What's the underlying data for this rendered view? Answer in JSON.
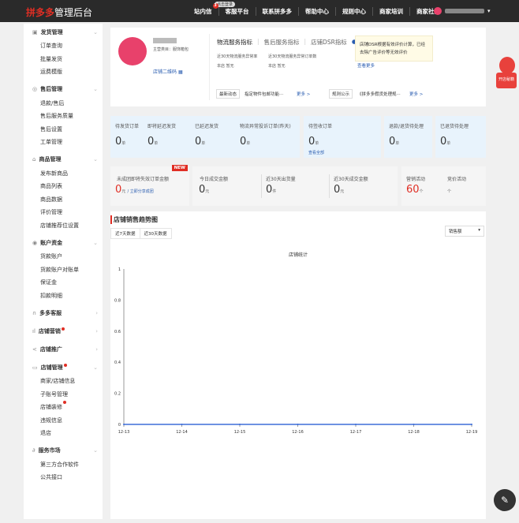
{
  "header": {
    "logo_brand": "拼多多",
    "logo_text": "管理后台",
    "nav": [
      {
        "label": "站内信",
        "badge": "3"
      },
      {
        "label": "客服平台",
        "bubble": "点击登录"
      },
      {
        "label": "联系拼多多"
      },
      {
        "label": "帮助中心"
      },
      {
        "label": "规则中心"
      },
      {
        "label": "商家培训"
      },
      {
        "label": "商家社区"
      }
    ]
  },
  "sidebar": [
    {
      "label": "发货管理",
      "icon": "box-icon",
      "open": true,
      "items": [
        {
          "label": "订单查询"
        },
        {
          "label": "批量发货"
        },
        {
          "label": "运费模版"
        }
      ]
    },
    {
      "label": "售后管理",
      "icon": "service-icon",
      "open": true,
      "items": [
        {
          "label": "退款/售后"
        },
        {
          "label": "售后服务质量"
        },
        {
          "label": "售后设置"
        },
        {
          "label": "工单管理"
        }
      ]
    },
    {
      "label": "商品管理",
      "icon": "bag-icon",
      "open": true,
      "items": [
        {
          "label": "发布新商品"
        },
        {
          "label": "商品列表"
        },
        {
          "label": "商品数据"
        },
        {
          "label": "评价管理"
        },
        {
          "label": "店铺推荐位设置"
        }
      ]
    },
    {
      "label": "账户资金",
      "icon": "money-icon",
      "open": true,
      "items": [
        {
          "label": "货款账户"
        },
        {
          "label": "货款账户对账单"
        },
        {
          "label": "保证金"
        },
        {
          "label": "扣款明细"
        }
      ]
    },
    {
      "label": "多多客服",
      "icon": "headset-icon",
      "open": false,
      "items": []
    },
    {
      "label": "店铺营销",
      "icon": "chart-icon",
      "open": false,
      "dot": true,
      "items": []
    },
    {
      "label": "店铺推广",
      "icon": "share-icon",
      "open": false,
      "items": []
    },
    {
      "label": "店铺管理",
      "icon": "shop-icon",
      "open": true,
      "dot": true,
      "items": [
        {
          "label": "商家/店铺信息"
        },
        {
          "label": "子账号管理"
        },
        {
          "label": "店铺装修",
          "dot": true
        },
        {
          "label": "违规信息"
        },
        {
          "label": "退店"
        }
      ]
    },
    {
      "label": "服务市场",
      "icon": "link-icon",
      "open": true,
      "items": [
        {
          "label": "第三方合作软件"
        },
        {
          "label": "公共接口"
        }
      ]
    }
  ],
  "shop": {
    "category": "主营类目：服饰箱包",
    "qrcode": "店铺二维码"
  },
  "indicators": {
    "tabs": [
      "物流服务指标",
      "售后服务指标",
      "店铺DSR指标"
    ],
    "col1_label": "近30天物流服务异常率",
    "col1_value": "本店 暂无",
    "col2_label": "近30天物流服务异常订单数",
    "col2_value": "本店 暂无",
    "more": "查看更多",
    "tooltip": "店铺DSR根据有效评价计算，已经去除广告评价等无效评价"
  },
  "news": {
    "tag1": "最新动态",
    "text1": "指定物件包邮功能···",
    "more1": "更多 >",
    "tag2": "规则公示",
    "text2": "《拼多多假货处理规···",
    "more2": "更多 >"
  },
  "orders": [
    {
      "label": "待发货订单",
      "value": "0",
      "unit": "单"
    },
    {
      "label": "即将延迟发货",
      "value": "0",
      "unit": "单"
    },
    {
      "label": "已延迟发货",
      "value": "0",
      "unit": "单"
    },
    {
      "label": "物流异常投诉订单(昨天)",
      "value": "0",
      "unit": "单"
    },
    {
      "label": "待签收订单",
      "value": "0",
      "unit": "单",
      "link": "查看全部"
    },
    {
      "label": "退款/退货待处理",
      "value": "0",
      "unit": "单"
    },
    {
      "label": "已退货待处理",
      "value": "0",
      "unit": "单"
    }
  ],
  "stats": {
    "new_badge": "NEW",
    "unpaid_label": "未成团即将失效订单金额",
    "unpaid_value": "0",
    "unpaid_unit": "元",
    "unpaid_link": "/ 立即分享成团",
    "today_label": "今日成交金额",
    "today_value": "0",
    "today_unit": "元",
    "ship_label": "近30天出货量",
    "ship_value": "0",
    "ship_unit": "件",
    "gmv_label": "近30天成交金额",
    "gmv_value": "0",
    "gmv_unit": "元",
    "mkt_label": "营销活动",
    "mkt_value": "60",
    "mkt_unit": "个",
    "bid_label": "竞价活动",
    "bid_unit": "个"
  },
  "trend": {
    "title": "店铺销售趋势图",
    "tabs": [
      "近7天数据",
      "近30天数据"
    ],
    "select": "销售额"
  },
  "chart_data": {
    "type": "line",
    "title": "店铺统计",
    "categories": [
      "12-13",
      "12-14",
      "12-15",
      "12-16",
      "12-17",
      "12-18",
      "12-19"
    ],
    "values": [
      0,
      0,
      0,
      0,
      0,
      0,
      0
    ],
    "ylim": [
      0,
      1
    ],
    "yticks": [
      "0",
      "0.2",
      "0.4",
      "0.6",
      "0.8",
      "1"
    ],
    "color": "#3f6fd8"
  },
  "promo": {
    "label": "开店秘籍"
  }
}
